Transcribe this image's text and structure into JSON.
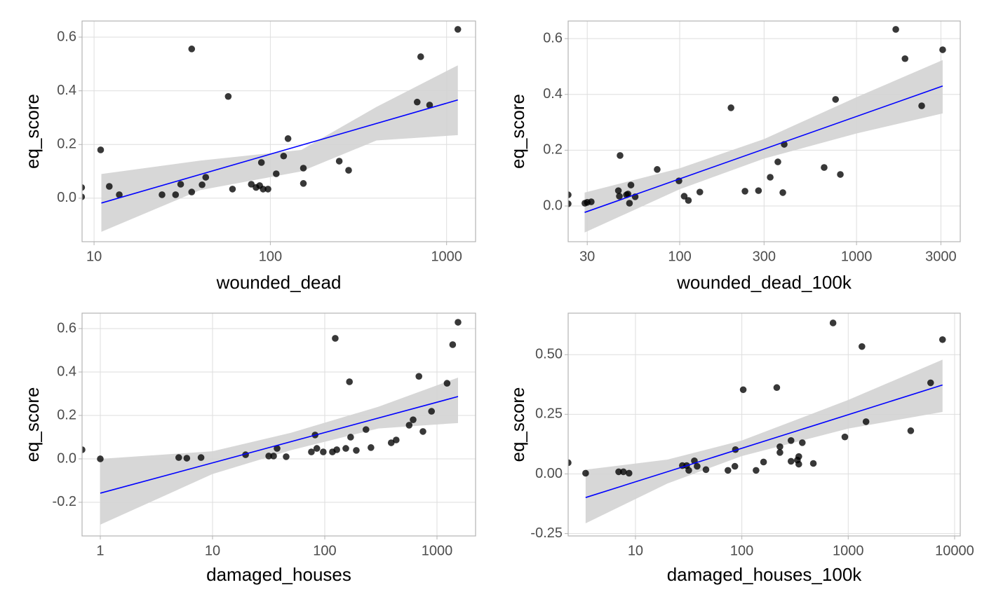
{
  "chart_data": [
    {
      "type": "scatter",
      "xlabel": "wounded_dead",
      "ylabel": "eq_score",
      "log_x": true,
      "grid": true,
      "xlim": [
        8.55,
        1460
      ],
      "ylim": [
        -0.162,
        0.66
      ],
      "xticks": [
        10,
        100,
        1000
      ],
      "yticks": [
        {
          "value": 0,
          "label": "0.0"
        },
        0.2,
        0.4,
        0.6
      ],
      "color": "#000000",
      "x": [
        8.5,
        8.5,
        10.9,
        12.2,
        13.9,
        24.3,
        29,
        31,
        35.8,
        35.8,
        41,
        43,
        57.7,
        61,
        78,
        83,
        87,
        89,
        91,
        97,
        108,
        119,
        126,
        154,
        154,
        246,
        278,
        681,
        713,
        801,
        1158
      ],
      "y": [
        0.04,
        0.005,
        0.18,
        0.044,
        0.013,
        0.013,
        0.013,
        0.052,
        0.556,
        0.023,
        0.05,
        0.078,
        0.379,
        0.034,
        0.052,
        0.04,
        0.047,
        0.133,
        0.034,
        0.034,
        0.091,
        0.157,
        0.222,
        0.112,
        0.055,
        0.138,
        0.104,
        0.358,
        0.527,
        0.347,
        0.629
      ],
      "fit_line": {
        "color": "#0000ff",
        "x": [
          11,
          1158
        ],
        "y": [
          -0.018,
          0.366
        ]
      },
      "confidence_band": {
        "color": "#d3d3d3",
        "x": [
          11,
          40,
          150,
          400,
          1158
        ],
        "lower": [
          -0.125,
          0.03,
          0.1,
          0.215,
          0.235
        ],
        "upper": [
          0.09,
          0.14,
          0.18,
          0.34,
          0.495
        ]
      }
    },
    {
      "type": "scatter",
      "xlabel": "wounded_dead_100k",
      "ylabel": "eq_score",
      "log_x": true,
      "grid": true,
      "xlim": [
        23.4,
        3860
      ],
      "ylim": [
        -0.128,
        0.663
      ],
      "xticks": [
        30,
        100,
        300,
        1000,
        3000
      ],
      "yticks": [
        {
          "value": 0,
          "label": "0.0"
        },
        0.2,
        0.4,
        0.6
      ],
      "color": "#000000",
      "x": [
        23.4,
        23.4,
        29.1,
        30,
        31.6,
        46,
        45,
        45.6,
        50,
        51,
        52,
        53,
        56,
        74.6,
        99,
        106,
        112,
        130,
        195,
        234,
        279,
        325,
        359,
        383,
        390,
        656,
        761,
        810,
        1667,
        1880,
        2336,
        3070
      ],
      "y": [
        0.04,
        0.008,
        0.01,
        0.013,
        0.015,
        0.181,
        0.055,
        0.035,
        0.04,
        0.043,
        0.01,
        0.075,
        0.033,
        0.131,
        0.09,
        0.035,
        0.02,
        0.05,
        0.352,
        0.053,
        0.055,
        0.103,
        0.158,
        0.048,
        0.221,
        0.138,
        0.382,
        0.113,
        0.633,
        0.528,
        0.359,
        0.56
      ],
      "fit_line": {
        "color": "#0000ff",
        "x": [
          29,
          3070
        ],
        "y": [
          -0.023,
          0.43
        ]
      },
      "confidence_band": {
        "color": "#d3d3d3",
        "x": [
          29,
          100,
          300,
          1000,
          3070
        ],
        "lower": [
          -0.095,
          0.06,
          0.17,
          0.26,
          0.332
        ],
        "upper": [
          0.048,
          0.135,
          0.24,
          0.39,
          0.523
        ]
      }
    },
    {
      "type": "scatter",
      "xlabel": "damaged_houses",
      "ylabel": "eq_score",
      "log_x": true,
      "grid": true,
      "xlim": [
        0.688,
        2207
      ],
      "ylim": [
        -0.355,
        0.671
      ],
      "xticks": [
        1,
        10,
        100,
        1000
      ],
      "yticks": [
        -0.2,
        {
          "value": 0,
          "label": "0.0"
        },
        0.2,
        0.4,
        0.6
      ],
      "color": "#000000",
      "x": [
        0.688,
        1,
        5,
        5.9,
        7.9,
        19.7,
        31.7,
        35,
        37.6,
        45.3,
        76,
        82,
        85,
        97,
        117,
        124,
        128,
        154,
        166,
        170,
        191,
        233,
        258,
        391,
        433,
        565,
        613,
        690,
        750,
        894,
        1230,
        1380,
        1540
      ],
      "y": [
        0.042,
        0,
        0.006,
        0.003,
        0.006,
        0.019,
        0.013,
        0.013,
        0.048,
        0.01,
        0.032,
        0.11,
        0.048,
        0.032,
        0.032,
        0.555,
        0.042,
        0.048,
        0.355,
        0.1,
        0.039,
        0.135,
        0.052,
        0.074,
        0.087,
        0.155,
        0.18,
        0.38,
        0.126,
        0.219,
        0.348,
        0.526,
        0.629
      ],
      "fit_line": {
        "color": "#0000ff",
        "x": [
          1,
          1540
        ],
        "y": [
          -0.158,
          0.287
        ]
      },
      "confidence_band": {
        "color": "#d3d3d3",
        "x": [
          1,
          10,
          50,
          300,
          1540
        ],
        "lower": [
          -0.303,
          -0.07,
          0.04,
          0.14,
          0.165
        ],
        "upper": [
          0,
          0.035,
          0.12,
          0.24,
          0.374
        ]
      }
    },
    {
      "type": "scatter",
      "xlabel": "damaged_houses_100k",
      "ylabel": "eq_score",
      "log_x": true,
      "grid": true,
      "xlim": [
        2.33,
        11300
      ],
      "ylim": [
        -0.26,
        0.674
      ],
      "xticks": [
        10,
        100,
        1000,
        10000
      ],
      "yticks": [
        -0.25,
        {
          "value": 0,
          "label": "0.00"
        },
        0.25,
        {
          "value": 0.5,
          "label": "0.50"
        }
      ],
      "color": "#000000",
      "x": [
        2.33,
        3.4,
        6.95,
        7.7,
        8.7,
        27.6,
        30.3,
        31.7,
        35.8,
        38,
        46,
        74,
        86,
        87,
        103,
        136,
        160,
        213,
        228,
        228,
        290,
        290,
        333,
        343,
        343,
        370,
        470,
        720,
        930,
        1345,
        1470,
        3870,
        5950,
        7700
      ],
      "y": [
        0.047,
        0.003,
        0.009,
        0.009,
        0.003,
        0.035,
        0.035,
        0.015,
        0.055,
        0.032,
        0.018,
        0.015,
        0.032,
        0.102,
        0.353,
        0.015,
        0.05,
        0.362,
        0.114,
        0.09,
        0.053,
        0.14,
        0.058,
        0.041,
        0.073,
        0.131,
        0.044,
        0.633,
        0.155,
        0.534,
        0.219,
        0.181,
        0.382,
        0.563
      ],
      "fit_line": {
        "color": "#0000ff",
        "x": [
          3.4,
          7700
        ],
        "y": [
          -0.099,
          0.373
        ]
      },
      "confidence_band": {
        "color": "#d3d3d3",
        "x": [
          3.4,
          20,
          100,
          1000,
          7700
        ],
        "lower": [
          -0.207,
          -0.04,
          0.075,
          0.19,
          0.26
        ],
        "upper": [
          0.018,
          0.06,
          0.14,
          0.31,
          0.479
        ]
      }
    }
  ]
}
